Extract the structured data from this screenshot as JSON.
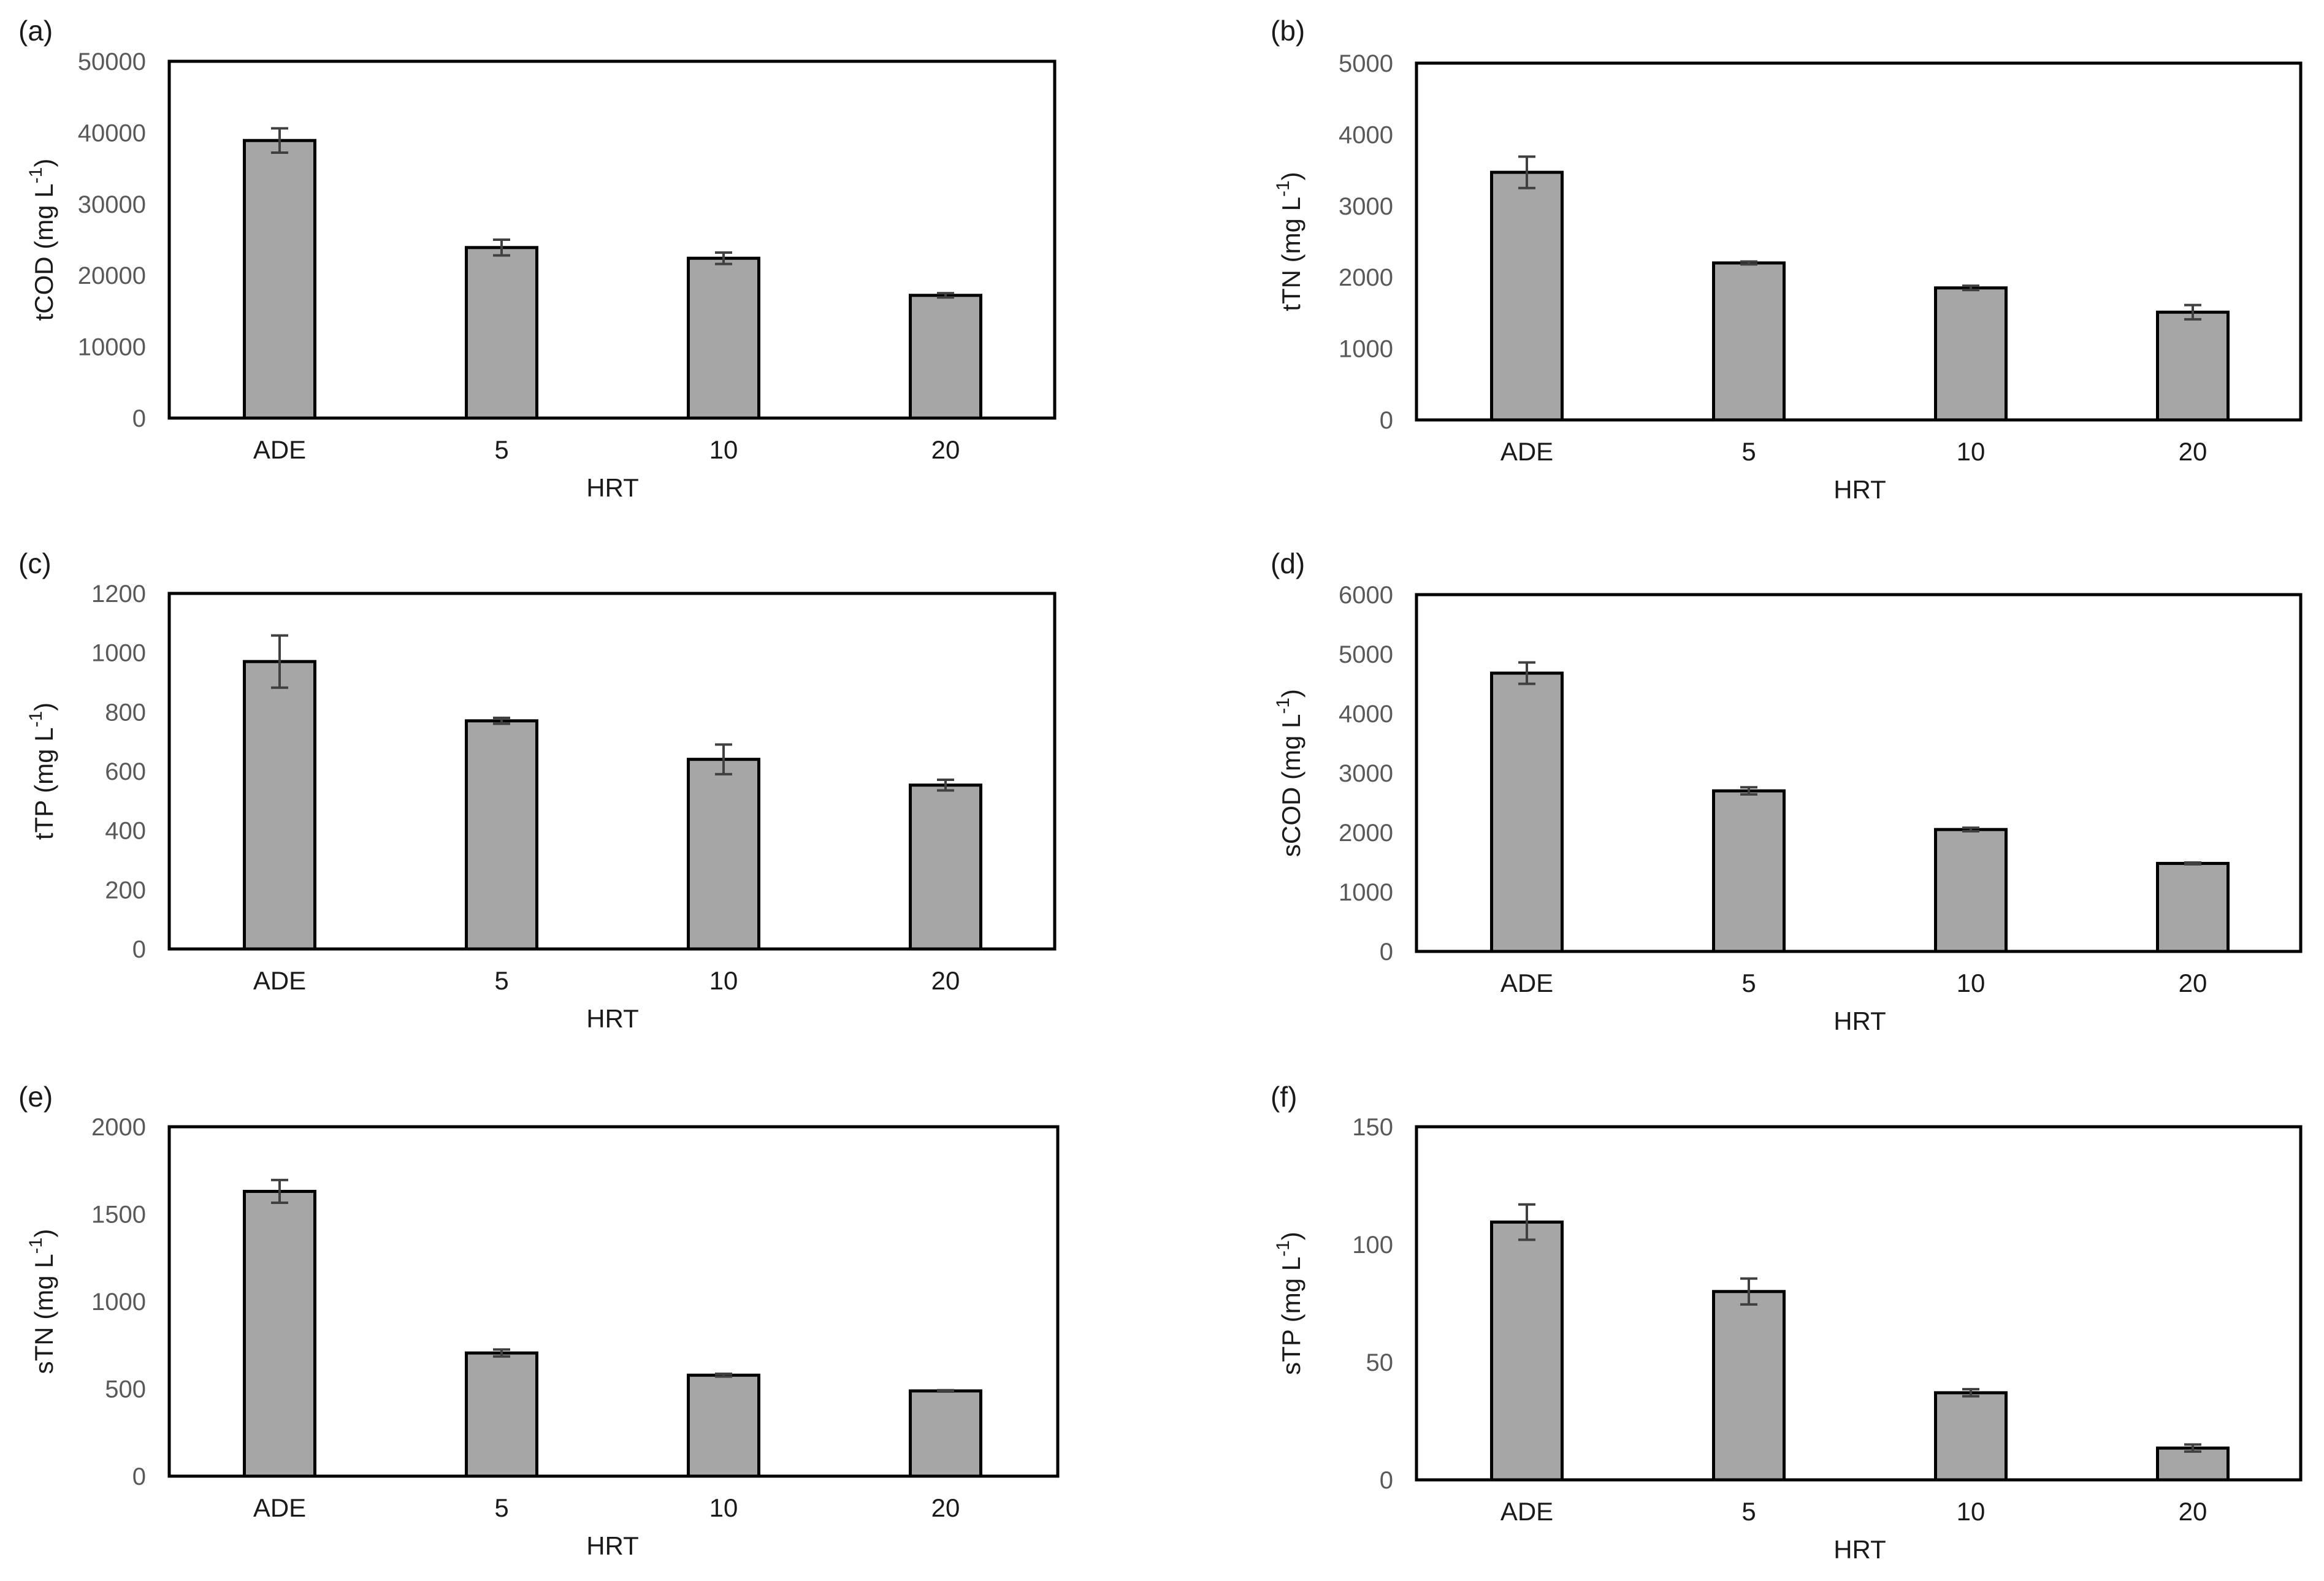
{
  "colors": {
    "bar_fill": "#a6a6a6",
    "bar_stroke": "#000000",
    "error_bar": "#404040",
    "tick_text": "#595959"
  },
  "chart_data": [
    {
      "panel": "(a)",
      "type": "bar",
      "categories": [
        "ADE",
        "5",
        "10",
        "20"
      ],
      "values": [
        38900,
        23900,
        22400,
        17200
      ],
      "errors": [
        1700,
        1100,
        800,
        300
      ],
      "xlabel": "HRT",
      "ylabel": "tCOD (mg L",
      "ylabel_sup": "-1",
      "ylabel_end": ")",
      "ylim": [
        0,
        50000
      ],
      "yticks": [
        0,
        10000,
        20000,
        30000,
        40000,
        50000
      ],
      "grid": false,
      "legend": "none"
    },
    {
      "panel": "(b)",
      "type": "bar",
      "categories": [
        "ADE",
        "5",
        "10",
        "20"
      ],
      "values": [
        3470,
        2200,
        1850,
        1510
      ],
      "errors": [
        220,
        20,
        30,
        100
      ],
      "xlabel": "HRT",
      "ylabel": "tTN (mg L",
      "ylabel_sup": "-1",
      "ylabel_end": ")",
      "ylim": [
        0,
        5000
      ],
      "yticks": [
        0,
        1000,
        2000,
        3000,
        4000,
        5000
      ],
      "grid": false,
      "legend": "none"
    },
    {
      "panel": "(c)",
      "type": "bar",
      "categories": [
        "ADE",
        "5",
        "10",
        "20"
      ],
      "values": [
        970,
        770,
        640,
        553
      ],
      "errors": [
        88,
        10,
        50,
        18
      ],
      "xlabel": "HRT",
      "ylabel": "tTP (mg L",
      "ylabel_sup": "-1",
      "ylabel_end": ")",
      "ylim": [
        0,
        1200
      ],
      "yticks": [
        0,
        200,
        400,
        600,
        800,
        1000,
        1200
      ],
      "grid": false,
      "legend": "none"
    },
    {
      "panel": "(d)",
      "type": "bar",
      "categories": [
        "ADE",
        "5",
        "10",
        "20"
      ],
      "values": [
        4680,
        2700,
        2050,
        1480
      ],
      "errors": [
        180,
        60,
        30,
        15
      ],
      "xlabel": "HRT",
      "ylabel": "sCOD (mg L",
      "ylabel_sup": "-1",
      "ylabel_end": ")",
      "ylim": [
        0,
        6000
      ],
      "yticks": [
        0,
        1000,
        2000,
        3000,
        4000,
        5000,
        6000
      ],
      "grid": false,
      "legend": "none"
    },
    {
      "panel": "(e)",
      "type": "bar",
      "categories": [
        "ADE",
        "5",
        "10",
        "20"
      ],
      "values": [
        1630,
        705,
        578,
        488
      ],
      "errors": [
        65,
        20,
        8,
        4
      ],
      "xlabel": "HRT",
      "ylabel": "sTN (mg L",
      "ylabel_sup": "-1",
      "ylabel_end": ")",
      "ylim": [
        0,
        2000
      ],
      "yticks": [
        0,
        500,
        1000,
        1500,
        2000
      ],
      "grid": false,
      "legend": "none"
    },
    {
      "panel": "(f)",
      "type": "bar",
      "categories": [
        "ADE",
        "5",
        "10",
        "20"
      ],
      "values": [
        109.5,
        80,
        37,
        13.5
      ],
      "errors": [
        7.5,
        5.5,
        1.5,
        1.5
      ],
      "xlabel": "HRT",
      "ylabel": "sTP (mg L",
      "ylabel_sup": "-1",
      "ylabel_end": ")",
      "ylim": [
        0,
        150
      ],
      "yticks": [
        0,
        50,
        100,
        150
      ],
      "grid": false,
      "legend": "none"
    }
  ]
}
